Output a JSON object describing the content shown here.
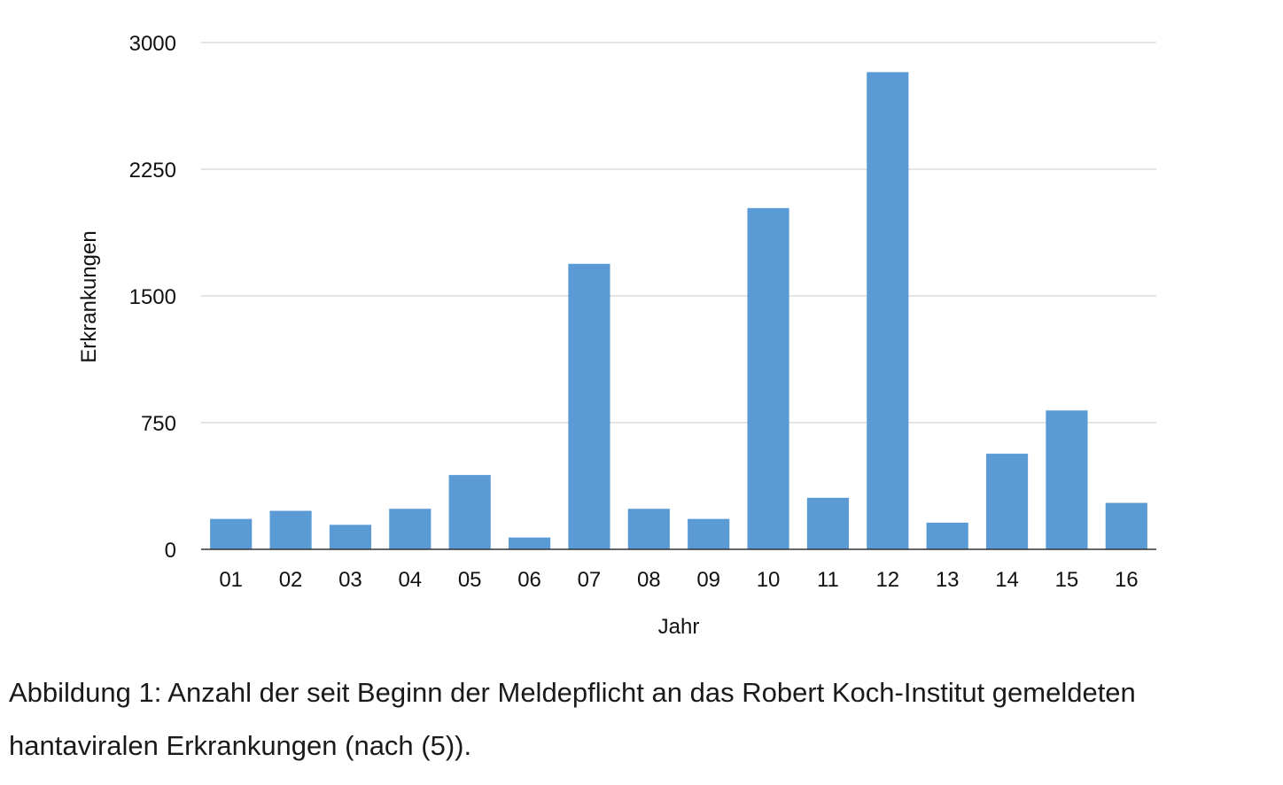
{
  "chart_data": {
    "type": "bar",
    "categories": [
      "01",
      "02",
      "03",
      "04",
      "05",
      "06",
      "07",
      "08",
      "09",
      "10",
      "11",
      "12",
      "13",
      "14",
      "15",
      "16"
    ],
    "values": [
      180,
      228,
      145,
      240,
      440,
      70,
      1690,
      240,
      180,
      2020,
      305,
      2825,
      158,
      566,
      822,
      275
    ],
    "xlabel": "Jahr",
    "ylabel": "Erkrankungen",
    "ylim": [
      0,
      3000
    ],
    "yticks": [
      0,
      750,
      1500,
      2250,
      3000
    ],
    "grid": true,
    "bar_color": "#5b9bd5"
  },
  "caption": "Abbildung 1: Anzahl der seit Beginn der Meldepflicht an das Robert Koch-Institut gemeldeten hantaviralen Erkrankungen (nach (5))."
}
